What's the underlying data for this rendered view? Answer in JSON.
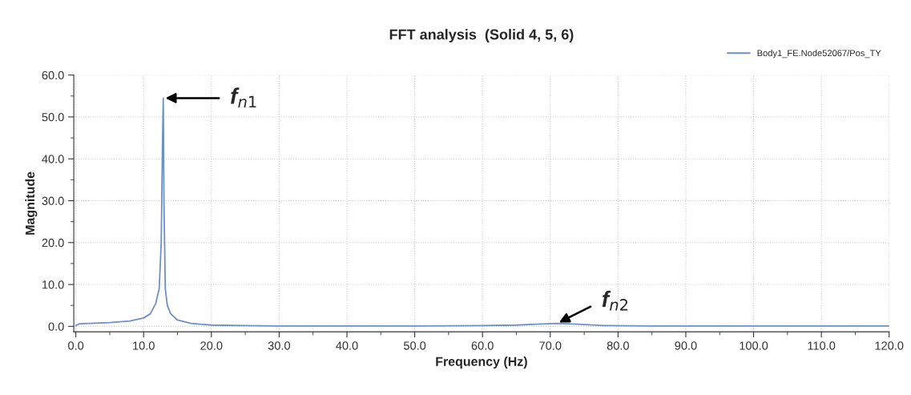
{
  "chart_data": {
    "type": "line",
    "title": "FFT analysis  (Solid 4, 5, 6)",
    "xlabel": "Frequency (Hz)",
    "ylabel": "Magnitude",
    "x": [
      0,
      0.5,
      2,
      5,
      8,
      10,
      11,
      11.8,
      12.3,
      12.6,
      12.8,
      12.9,
      13.0,
      13.2,
      13.5,
      14,
      15,
      17,
      20,
      25,
      30,
      40,
      50,
      60,
      65,
      68,
      71,
      74,
      78,
      85,
      100,
      120
    ],
    "series": [
      {
        "name": "Body1_FE.Node52067/Pos_TY",
        "color": "#6f8fc8",
        "values": [
          0.2,
          0.6,
          0.7,
          0.9,
          1.3,
          2.0,
          3.0,
          5.5,
          9,
          20,
          45,
          54.5,
          30,
          9,
          5,
          3,
          1.5,
          0.7,
          0.3,
          0.2,
          0.1,
          0.1,
          0.1,
          0.2,
          0.3,
          0.5,
          0.7,
          0.5,
          0.2,
          0.1,
          0.1,
          0.1
        ]
      }
    ],
    "xlim": [
      -0.3,
      120
    ],
    "ylim": [
      -1.3,
      60
    ],
    "xticks": [
      {
        "value": 0,
        "label": "0.0"
      },
      {
        "value": 10,
        "label": "10.0"
      },
      {
        "value": 20,
        "label": "20.0"
      },
      {
        "value": 30,
        "label": "30.0"
      },
      {
        "value": 40,
        "label": "40.0"
      },
      {
        "value": 50,
        "label": "50.0"
      },
      {
        "value": 60,
        "label": "60.0"
      },
      {
        "value": 70,
        "label": "70.0"
      },
      {
        "value": 80,
        "label": "80.0"
      },
      {
        "value": 90,
        "label": "90.0"
      },
      {
        "value": 100,
        "label": "100.0"
      },
      {
        "value": 110,
        "label": "110.0"
      },
      {
        "value": 120,
        "label": "120.0"
      }
    ],
    "yticks": [
      {
        "value": 0,
        "label": "0.0"
      },
      {
        "value": 10,
        "label": "10.0"
      },
      {
        "value": 20,
        "label": "20.0"
      },
      {
        "value": 30,
        "label": "30.0"
      },
      {
        "value": 40,
        "label": "40.0"
      },
      {
        "value": 50,
        "label": "50.0"
      },
      {
        "value": 60,
        "label": "60.0"
      }
    ],
    "annotations": [
      {
        "text": "f$_{n1}$",
        "x": 12.9,
        "y": 54.5
      },
      {
        "text": "f$_{n2}$",
        "x": 71,
        "y": 0.7
      }
    ],
    "grid": true,
    "legend": "top right",
    "marker": "none",
    "line_style": "solid"
  }
}
